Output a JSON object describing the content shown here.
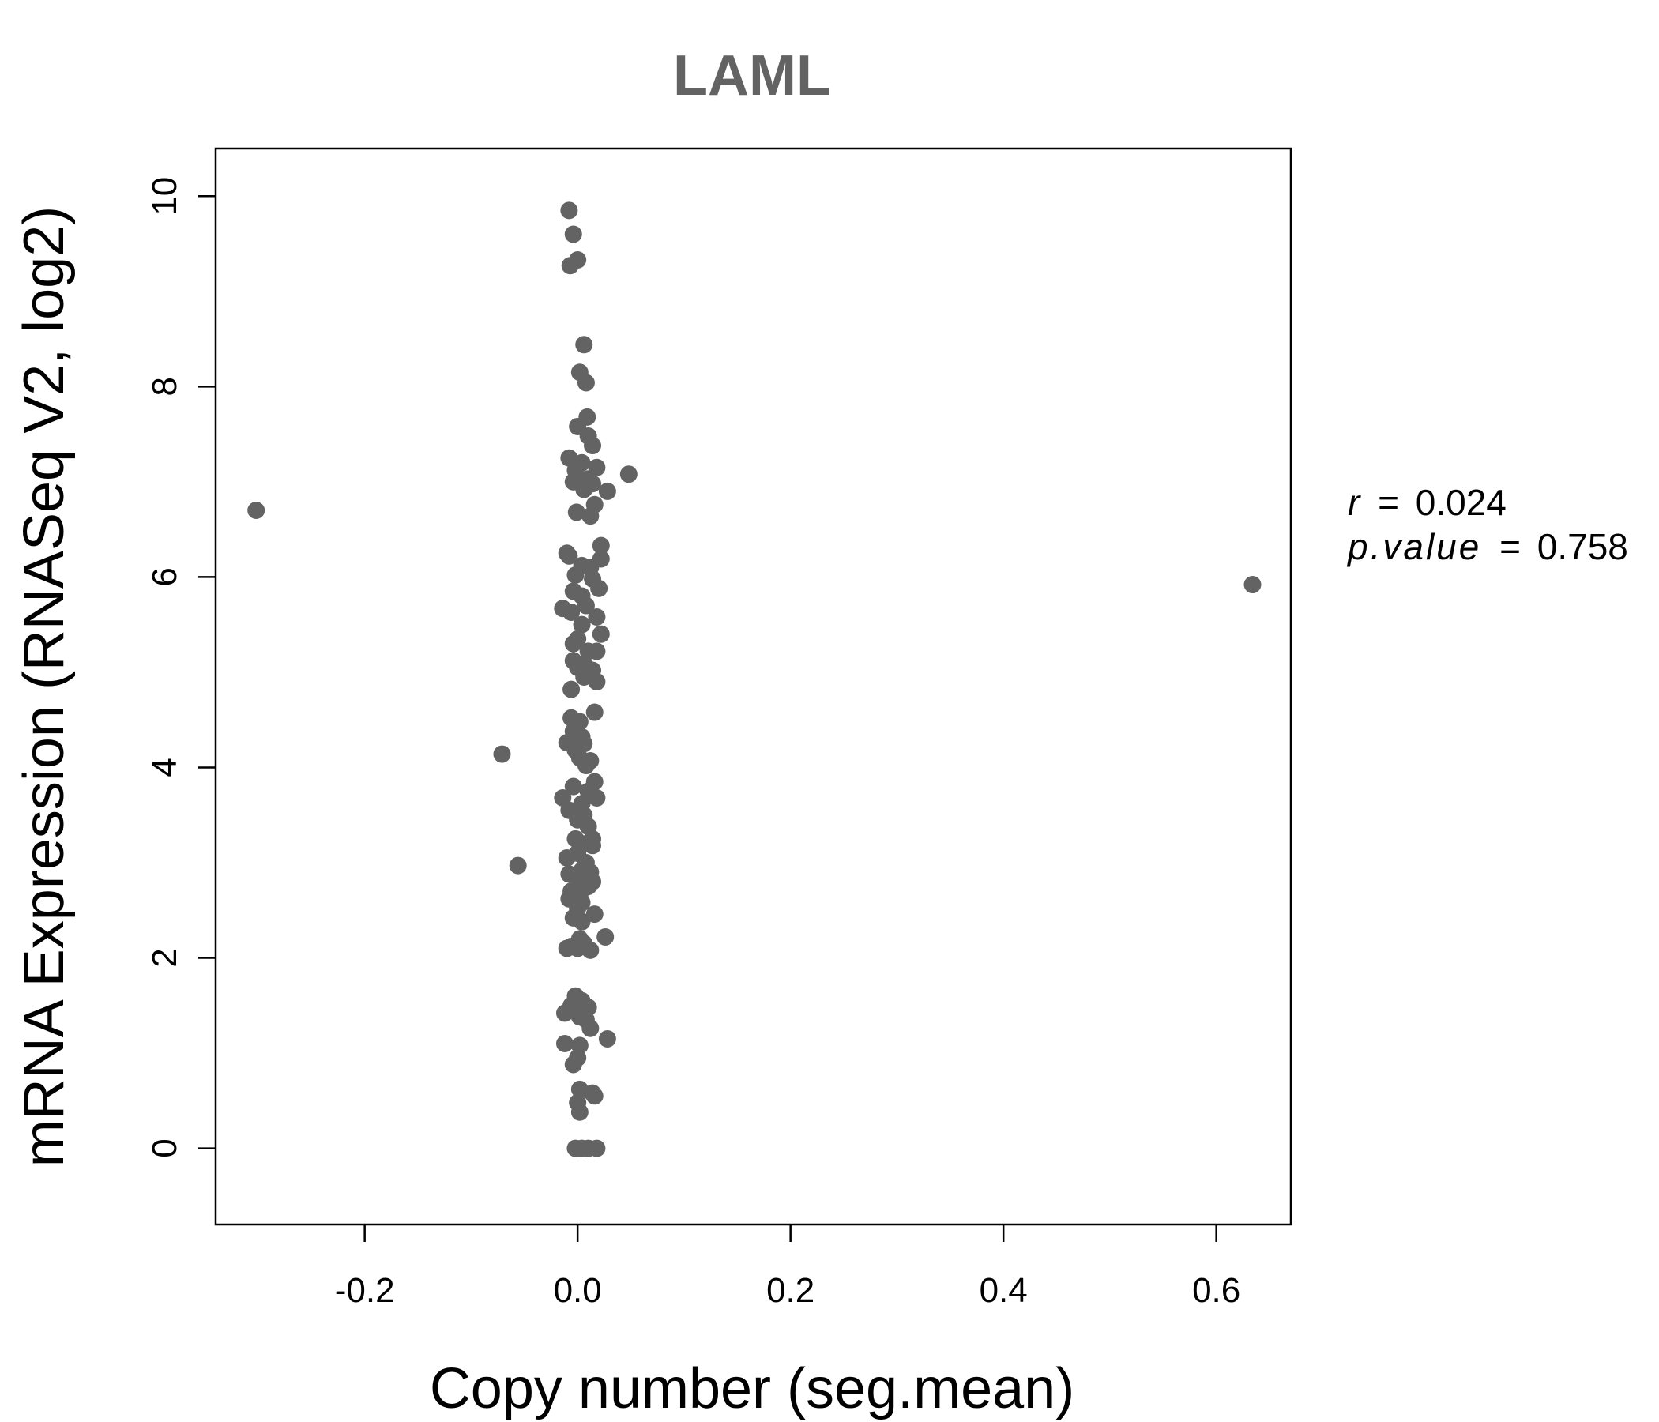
{
  "chart_data": {
    "type": "scatter",
    "title": "LAML",
    "xlabel": "Copy number (seg.mean)",
    "ylabel": "mRNA Expression (RNASeq V2, log2)",
    "xlim": [
      -0.34,
      0.67
    ],
    "ylim": [
      -0.8,
      10.5
    ],
    "xticks": [
      -0.2,
      0.0,
      0.2,
      0.4,
      0.6
    ],
    "xtick_labels": [
      "-0.2",
      "0.0",
      "0.2",
      "0.4",
      "0.6"
    ],
    "yticks": [
      0,
      2,
      4,
      6,
      8,
      10
    ],
    "ytick_labels": [
      "0",
      "2",
      "4",
      "6",
      "8",
      "10"
    ],
    "grid": false,
    "point_color": "#636363",
    "stats": {
      "r_label": "r",
      "r_value": "0.024",
      "p_label": "p.value",
      "p_value": "0.758",
      "equals": "="
    },
    "points": [
      [
        -0.008,
        9.85
      ],
      [
        -0.004,
        9.6
      ],
      [
        0.0,
        9.33
      ],
      [
        -0.007,
        9.27
      ],
      [
        0.006,
        8.44
      ],
      [
        0.002,
        8.15
      ],
      [
        0.008,
        8.04
      ],
      [
        0.009,
        7.68
      ],
      [
        0.0,
        7.58
      ],
      [
        0.01,
        7.48
      ],
      [
        0.014,
        7.38
      ],
      [
        -0.008,
        7.25
      ],
      [
        0.004,
        7.2
      ],
      [
        0.018,
        7.15
      ],
      [
        -0.002,
        7.12
      ],
      [
        0.048,
        7.08
      ],
      [
        0.01,
        7.03
      ],
      [
        -0.004,
        7.0
      ],
      [
        0.014,
        6.98
      ],
      [
        0.006,
        6.92
      ],
      [
        0.028,
        6.9
      ],
      [
        0.016,
        6.76
      ],
      [
        -0.001,
        6.68
      ],
      [
        0.012,
        6.64
      ],
      [
        -0.302,
        6.7
      ],
      [
        0.022,
        6.33
      ],
      [
        -0.01,
        6.25
      ],
      [
        0.022,
        6.19
      ],
      [
        -0.008,
        6.22
      ],
      [
        0.004,
        6.12
      ],
      [
        0.012,
        6.1
      ],
      [
        -0.002,
        6.02
      ],
      [
        0.014,
        5.98
      ],
      [
        0.02,
        5.88
      ],
      [
        0.634,
        5.92
      ],
      [
        -0.004,
        5.85
      ],
      [
        0.004,
        5.8
      ],
      [
        -0.014,
        5.67
      ],
      [
        0.008,
        5.7
      ],
      [
        -0.006,
        5.63
      ],
      [
        0.018,
        5.58
      ],
      [
        0.004,
        5.5
      ],
      [
        0.022,
        5.4
      ],
      [
        0.0,
        5.35
      ],
      [
        -0.004,
        5.3
      ],
      [
        0.01,
        5.22
      ],
      [
        0.018,
        5.22
      ],
      [
        -0.004,
        5.12
      ],
      [
        0.006,
        5.08
      ],
      [
        0.0,
        5.05
      ],
      [
        0.014,
        5.02
      ],
      [
        0.006,
        4.95
      ],
      [
        0.018,
        4.9
      ],
      [
        -0.006,
        4.82
      ],
      [
        0.016,
        4.58
      ],
      [
        -0.006,
        4.52
      ],
      [
        0.002,
        4.48
      ],
      [
        -0.004,
        4.38
      ],
      [
        0.004,
        4.32
      ],
      [
        -0.01,
        4.26
      ],
      [
        0.006,
        4.25
      ],
      [
        -0.002,
        4.18
      ],
      [
        -0.071,
        4.14
      ],
      [
        0.002,
        4.1
      ],
      [
        0.012,
        4.07
      ],
      [
        0.008,
        4.02
      ],
      [
        0.016,
        3.85
      ],
      [
        -0.004,
        3.8
      ],
      [
        0.01,
        3.75
      ],
      [
        -0.014,
        3.68
      ],
      [
        0.018,
        3.68
      ],
      [
        0.004,
        3.62
      ],
      [
        -0.008,
        3.55
      ],
      [
        0.006,
        3.5
      ],
      [
        0.0,
        3.45
      ],
      [
        0.01,
        3.38
      ],
      [
        0.014,
        3.25
      ],
      [
        -0.002,
        3.25
      ],
      [
        0.004,
        3.2
      ],
      [
        0.014,
        3.18
      ],
      [
        0.0,
        3.1
      ],
      [
        -0.01,
        3.05
      ],
      [
        0.008,
        3.0
      ],
      [
        -0.056,
        2.97
      ],
      [
        0.004,
        2.92
      ],
      [
        0.012,
        2.9
      ],
      [
        -0.008,
        2.88
      ],
      [
        0.0,
        2.85
      ],
      [
        0.014,
        2.8
      ],
      [
        0.006,
        2.78
      ],
      [
        0.01,
        2.75
      ],
      [
        -0.006,
        2.7
      ],
      [
        0.002,
        2.66
      ],
      [
        -0.008,
        2.62
      ],
      [
        0.004,
        2.58
      ],
      [
        0.0,
        2.52
      ],
      [
        0.016,
        2.46
      ],
      [
        -0.004,
        2.42
      ],
      [
        0.004,
        2.38
      ],
      [
        0.026,
        2.22
      ],
      [
        0.002,
        2.2
      ],
      [
        0.006,
        2.15
      ],
      [
        -0.006,
        2.12
      ],
      [
        0.012,
        2.08
      ],
      [
        -0.01,
        2.1
      ],
      [
        0.0,
        2.1
      ],
      [
        -0.002,
        1.6
      ],
      [
        0.004,
        1.55
      ],
      [
        -0.006,
        1.5
      ],
      [
        0.01,
        1.48
      ],
      [
        -0.012,
        1.42
      ],
      [
        0.002,
        1.38
      ],
      [
        0.008,
        1.35
      ],
      [
        0.012,
        1.26
      ],
      [
        0.028,
        1.15
      ],
      [
        -0.012,
        1.1
      ],
      [
        0.002,
        1.08
      ],
      [
        0.0,
        0.95
      ],
      [
        -0.004,
        0.88
      ],
      [
        0.002,
        0.62
      ],
      [
        0.014,
        0.58
      ],
      [
        0.016,
        0.55
      ],
      [
        0.0,
        0.48
      ],
      [
        0.002,
        0.38
      ],
      [
        -0.002,
        0.0
      ],
      [
        0.004,
        0.0
      ],
      [
        0.01,
        0.0
      ],
      [
        0.018,
        0.0
      ]
    ]
  }
}
